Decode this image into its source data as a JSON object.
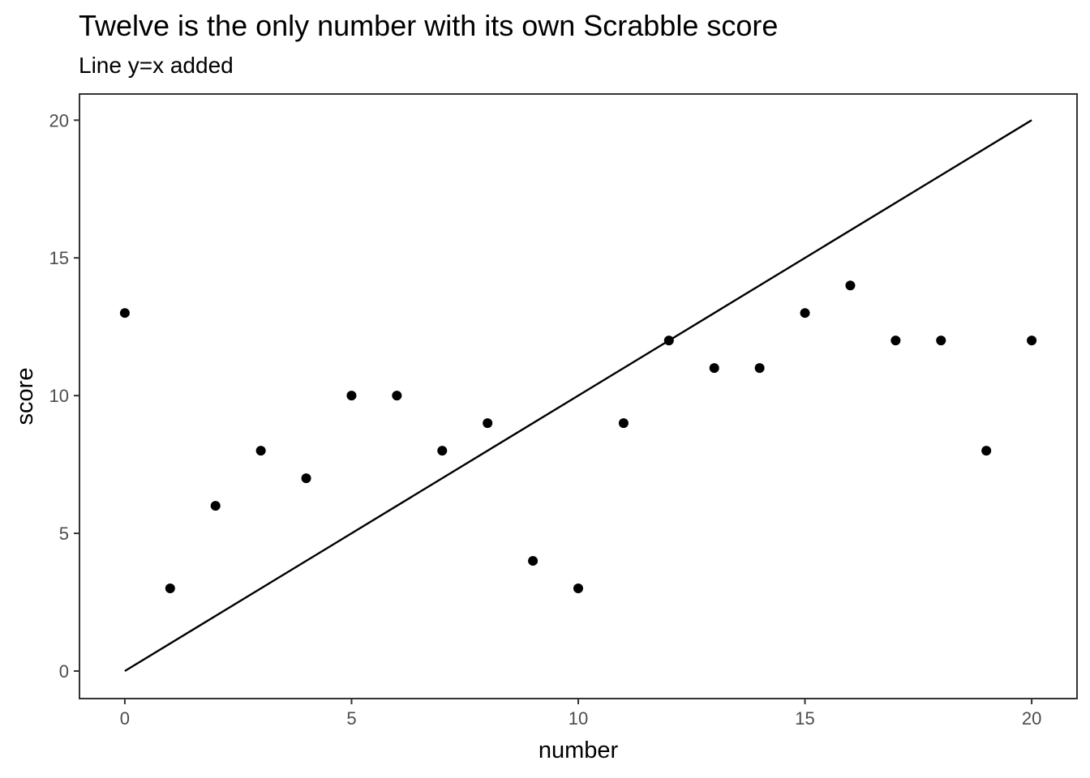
{
  "chart_data": {
    "type": "scatter",
    "title": "Twelve is the only number with its own Scrabble score",
    "subtitle": "Line y=x added",
    "xlabel": "number",
    "ylabel": "score",
    "xlim": [
      -1,
      21
    ],
    "ylim": [
      -1,
      20.95
    ],
    "x_ticks": [
      0,
      5,
      10,
      15,
      20
    ],
    "y_ticks": [
      0,
      5,
      10,
      15,
      20
    ],
    "grid": false,
    "reference_line": {
      "type": "y=x",
      "from": [
        0,
        0
      ],
      "to": [
        20,
        20
      ],
      "color": "#000000"
    },
    "series": [
      {
        "color": "#000000",
        "points": [
          {
            "x": 0,
            "y": 13
          },
          {
            "x": 1,
            "y": 3
          },
          {
            "x": 2,
            "y": 6
          },
          {
            "x": 3,
            "y": 8
          },
          {
            "x": 4,
            "y": 7
          },
          {
            "x": 5,
            "y": 10
          },
          {
            "x": 6,
            "y": 10
          },
          {
            "x": 7,
            "y": 8
          },
          {
            "x": 8,
            "y": 9
          },
          {
            "x": 9,
            "y": 4
          },
          {
            "x": 10,
            "y": 3
          },
          {
            "x": 11,
            "y": 9
          },
          {
            "x": 12,
            "y": 12
          },
          {
            "x": 13,
            "y": 11
          },
          {
            "x": 14,
            "y": 11
          },
          {
            "x": 15,
            "y": 13
          },
          {
            "x": 16,
            "y": 14
          },
          {
            "x": 17,
            "y": 12
          },
          {
            "x": 18,
            "y": 12
          },
          {
            "x": 19,
            "y": 8
          },
          {
            "x": 20,
            "y": 12
          }
        ]
      }
    ],
    "colors": {
      "panel_border": "#333333",
      "tick_color": "#333333",
      "tick_label": "#4d4d4d",
      "background": "#ffffff"
    }
  }
}
